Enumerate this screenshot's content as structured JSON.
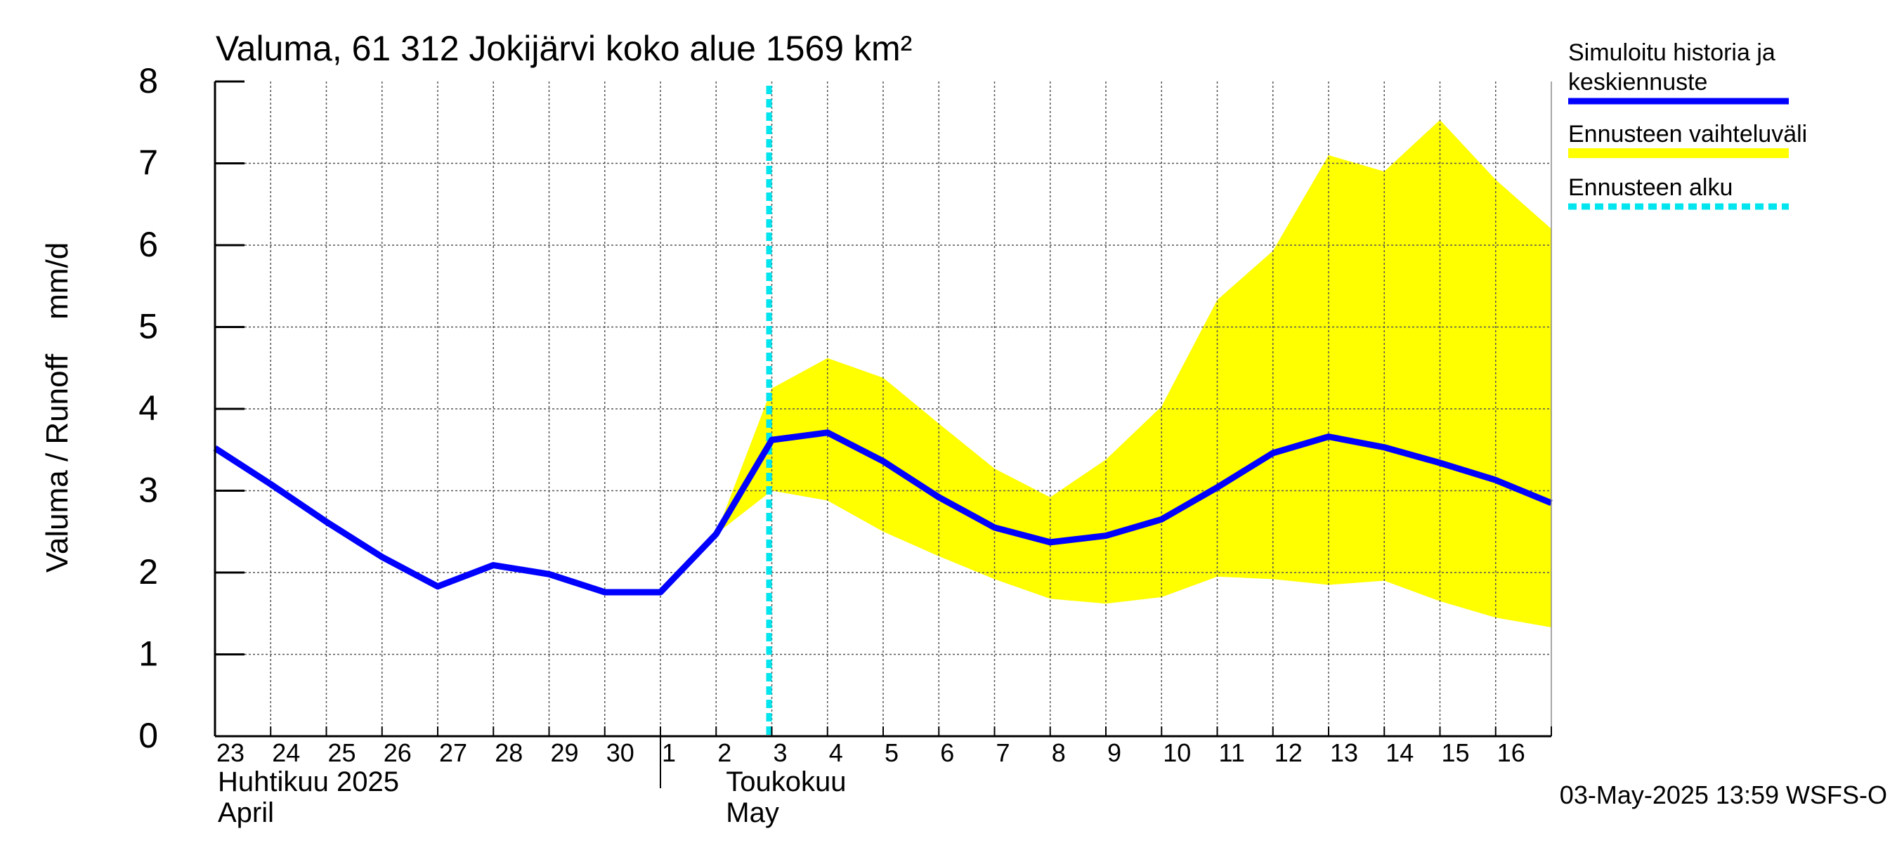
{
  "chart_data": {
    "type": "line",
    "title": "Valuma, 61 312 Jokijärvi koko alue 1569 km²",
    "ylabel": "Valuma / Runoff    mm/d",
    "ylim": [
      0,
      8
    ],
    "yticks": [
      "0",
      "1",
      "2",
      "3",
      "4",
      "5",
      "6",
      "7",
      "8"
    ],
    "x_day_labels": [
      "23",
      "24",
      "25",
      "26",
      "27",
      "28",
      "29",
      "30",
      "1",
      "2",
      "3",
      "4",
      "5",
      "6",
      "7",
      "8",
      "9",
      "10",
      "11",
      "12",
      "13",
      "14",
      "15",
      "16"
    ],
    "month_labels": [
      {
        "fi": "Huhtikuu  2025",
        "en": "April"
      },
      {
        "fi": "Toukokuu",
        "en": "May"
      }
    ],
    "x_range_days": [
      0,
      24
    ],
    "forecast_start_day": 9.95,
    "series": [
      {
        "name": "Simuloitu historia ja keskiennuste",
        "color": "#0000ff",
        "x": [
          0,
          1,
          2,
          3,
          4,
          5,
          6,
          7,
          8,
          9,
          10,
          11,
          12,
          13,
          14,
          15,
          16,
          17,
          18,
          19,
          20,
          21,
          22,
          23,
          24
        ],
        "values": [
          3.52,
          3.08,
          2.62,
          2.19,
          1.83,
          2.09,
          1.98,
          1.76,
          1.76,
          2.47,
          3.62,
          3.71,
          3.36,
          2.92,
          2.55,
          2.37,
          2.45,
          2.65,
          3.04,
          3.46,
          3.66,
          3.53,
          3.34,
          3.13,
          2.85
        ]
      }
    ],
    "band": {
      "name": "Ennusteen vaihteluväli",
      "color": "#ffff00",
      "x": [
        9,
        10,
        11,
        12,
        13,
        14,
        15,
        16,
        17,
        18,
        19,
        20,
        21,
        22,
        23,
        24
      ],
      "upper": [
        2.47,
        4.25,
        4.62,
        4.38,
        3.82,
        3.27,
        2.92,
        3.38,
        4.03,
        5.33,
        5.93,
        7.1,
        6.9,
        7.53,
        6.8,
        6.2
      ],
      "lower": [
        2.47,
        3.0,
        2.88,
        2.5,
        2.2,
        1.92,
        1.68,
        1.62,
        1.7,
        1.95,
        1.92,
        1.85,
        1.9,
        1.65,
        1.45,
        1.33
      ]
    },
    "legend": {
      "placement": "right",
      "entries": [
        {
          "label_line1": "Simuloitu historia ja",
          "label_line2": "keskiennuste",
          "color": "#0000ff",
          "style": "solid"
        },
        {
          "label_line1": "Ennusteen vaihteluväli",
          "label_line2": "",
          "color": "#ffff00",
          "style": "solid"
        },
        {
          "label_line1": "Ennusteen alku",
          "label_line2": "",
          "color": "#00e5ee",
          "style": "dashed"
        }
      ]
    },
    "forecast_line_color": "#00e5ee",
    "grid": true,
    "footer": "03-May-2025 13:59 WSFS-O"
  }
}
